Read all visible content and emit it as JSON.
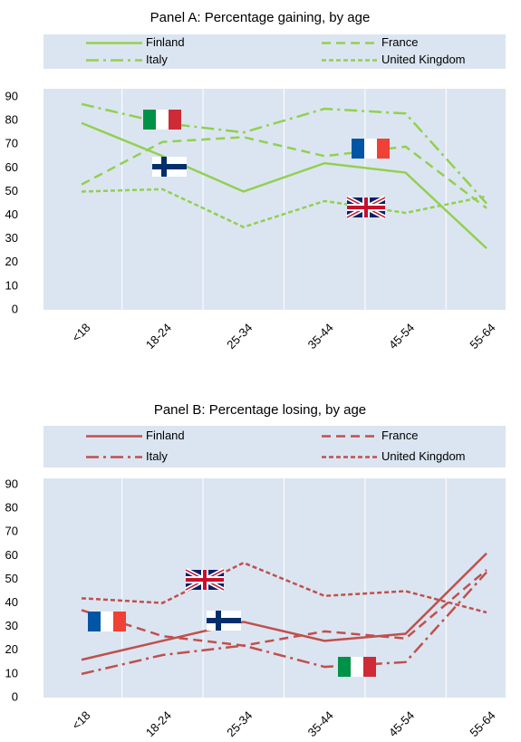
{
  "chart_data": [
    {
      "type": "line",
      "title": "Panel A: Percentage gaining, by age",
      "categories": [
        "<18",
        "18-24",
        "25-34",
        "35-44",
        "45-54",
        "55-64"
      ],
      "ylim": [
        0,
        90
      ],
      "yticks": [
        0,
        10,
        20,
        30,
        40,
        50,
        60,
        70,
        80,
        90
      ],
      "series": [
        {
          "name": "Finland",
          "color": "#92d050",
          "style": "solid",
          "values": [
            79,
            65,
            50,
            62,
            58,
            26
          ]
        },
        {
          "name": "France",
          "color": "#92d050",
          "style": "dashed",
          "values": [
            53,
            71,
            73,
            65,
            69,
            43
          ]
        },
        {
          "name": "Italy",
          "color": "#92d050",
          "style": "dashdot",
          "values": [
            87,
            79,
            75,
            85,
            83,
            45
          ]
        },
        {
          "name": "United Kingdom",
          "color": "#92d050",
          "style": "dotted",
          "values": [
            50,
            51,
            35,
            46,
            41,
            48
          ]
        }
      ]
    },
    {
      "type": "line",
      "title": "Panel B: Percentage losing, by age",
      "categories": [
        "<18",
        "18-24",
        "25-34",
        "35-44",
        "45-54",
        "55-64"
      ],
      "ylim": [
        0,
        90
      ],
      "yticks": [
        0,
        10,
        20,
        30,
        40,
        50,
        60,
        70,
        80,
        90
      ],
      "series": [
        {
          "name": "Finland",
          "color": "#c0504d",
          "style": "solid",
          "values": [
            16,
            24,
            32,
            24,
            27,
            61
          ]
        },
        {
          "name": "France",
          "color": "#c0504d",
          "style": "dashed",
          "values": [
            37,
            26,
            22,
            28,
            25,
            54
          ]
        },
        {
          "name": "Italy",
          "color": "#c0504d",
          "style": "dashdot",
          "values": [
            10,
            18,
            22,
            13,
            15,
            53
          ]
        },
        {
          "name": "United Kingdom",
          "color": "#c0504d",
          "style": "dotted",
          "values": [
            42,
            40,
            57,
            43,
            45,
            36
          ]
        }
      ]
    }
  ]
}
